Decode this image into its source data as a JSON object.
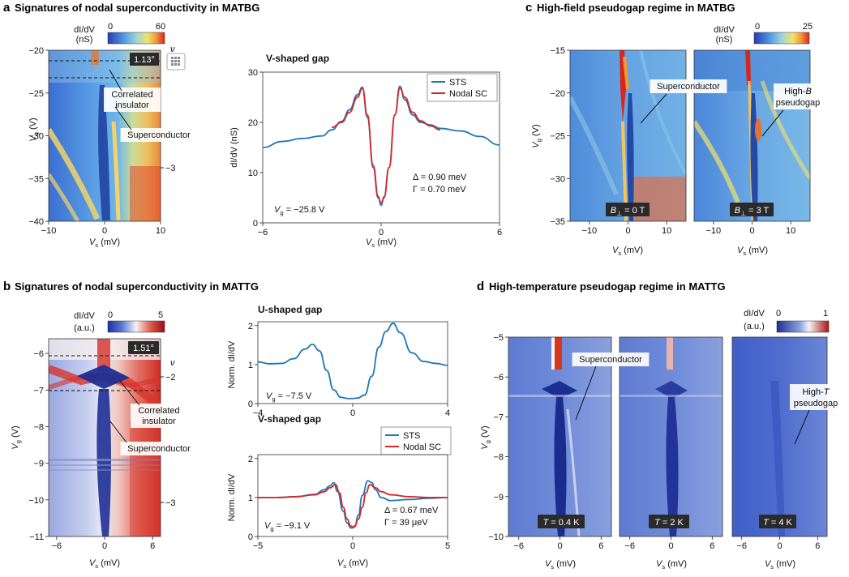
{
  "panels": {
    "a": {
      "letter": "a",
      "title": "Signatures of nodal superconductivity in MATBG"
    },
    "b": {
      "letter": "b",
      "title": "Signatures of nodal superconductivity in MATTG"
    },
    "c": {
      "letter": "c",
      "title": "High-field pseudogap regime in MATBG"
    },
    "d": {
      "letter": "d",
      "title": "High-temperature pseudogap regime in MATTG"
    }
  },
  "colors": {
    "cool": "#2b4fb5",
    "mid": "#f2f2f2",
    "warm": "#c4141b",
    "sts": "#1f77b4",
    "nodal": "#d62728",
    "parula_low": "#3a56c8",
    "parula_high": "#e03a2a"
  },
  "chart_data": [
    {
      "id": "a-map",
      "type": "heatmap",
      "colorbar": {
        "label1": "dI/dV",
        "label2": "(nS)",
        "min": 0,
        "max": 60,
        "ticks": [
          "0",
          "60"
        ]
      },
      "xlabel": "V",
      "xlabel_sub": "s",
      "xlabel_unit": " (mV)",
      "ylabel": "V",
      "ylabel_sub": "g",
      "ylabel_unit": " (V)",
      "xlim": [
        -10,
        10
      ],
      "ylim": [
        -40,
        -20
      ],
      "xticks": [
        "-10",
        "0",
        "10"
      ],
      "yticks": [
        "-20",
        "-25",
        "-30",
        "-35",
        "-40"
      ],
      "right_axis": {
        "label": "ν",
        "ticks": [
          "-3"
        ]
      },
      "twist_badge": "1.13°",
      "annotations": [
        "Correlated insulator",
        "Superconductor"
      ],
      "dashed_lines_vg": [
        -21.3,
        -23.1
      ]
    },
    {
      "id": "a-line",
      "type": "line",
      "title": "V-shaped gap",
      "xlabel": "V",
      "xlabel_sub": "s",
      "xlabel_unit": " (mV)",
      "ylabel": "dI/dV (nS)",
      "xlim": [
        -6,
        6
      ],
      "ylim": [
        0,
        30
      ],
      "xticks": [
        "-6",
        "0",
        "6"
      ],
      "yticks": [
        "0",
        "10",
        "20",
        "30"
      ],
      "legend": [
        "STS",
        "Nodal SC"
      ],
      "gate_label": "V",
      "gate_sub": "g",
      "gate_value": " = −25.8 V",
      "params": [
        "Δ = 0.90 meV",
        "Γ = 0.70 meV"
      ],
      "series": [
        {
          "name": "STS",
          "x": [
            -6,
            -5,
            -4,
            -3,
            -2.5,
            -2,
            -1.6,
            -1.2,
            -0.95,
            -0.7,
            -0.4,
            -0.15,
            0,
            0.15,
            0.4,
            0.7,
            0.95,
            1.2,
            1.6,
            2,
            2.5,
            3,
            4,
            5,
            6
          ],
          "y": [
            15,
            16.2,
            16.8,
            17.3,
            18.5,
            20.2,
            22.5,
            25.5,
            27,
            21,
            11.5,
            5.3,
            3.5,
            5.2,
            11,
            21.5,
            27.2,
            24.5,
            21.5,
            20,
            19.5,
            18.8,
            18.3,
            17.2,
            15.5
          ]
        },
        {
          "name": "Nodal SC",
          "x": [
            -2.5,
            -2,
            -1.6,
            -1.2,
            -0.95,
            -0.7,
            -0.4,
            -0.15,
            0,
            0.15,
            0.4,
            0.7,
            0.95,
            1.2,
            1.6,
            2,
            2.5,
            3
          ],
          "y": [
            19,
            20,
            22,
            25,
            26.8,
            21.5,
            11,
            5,
            4,
            5,
            11,
            21.5,
            26.8,
            25,
            22,
            20.3,
            19.3,
            18.5
          ]
        }
      ]
    },
    {
      "id": "b-map",
      "type": "heatmap",
      "colorbar": {
        "label1": "dI/dV",
        "label2": "(a.u.)",
        "min": 0,
        "max": 5,
        "ticks": [
          "0",
          "5"
        ]
      },
      "xlabel": "V",
      "xlabel_sub": "s",
      "xlabel_unit": " (mV)",
      "ylabel": "V",
      "ylabel_sub": "g",
      "ylabel_unit": " (V)",
      "xlim": [
        -7,
        7
      ],
      "ylim": [
        -11,
        -5.6
      ],
      "xticks": [
        "-6",
        "0",
        "6"
      ],
      "yticks": [
        "-6",
        "-7",
        "-8",
        "-9",
        "-10",
        "-11"
      ],
      "right_axis": {
        "label": "ν",
        "ticks": [
          "-2",
          "-3"
        ]
      },
      "twist_badge": "1.51°",
      "annotations": [
        "Correlated insulator",
        "Superconductor"
      ],
      "dashed_lines_vg": [
        -5.95,
        -6.9
      ]
    },
    {
      "id": "b-line-u",
      "type": "line",
      "title": "U-shaped gap",
      "xlabel": "",
      "ylabel": "Norm. dI/dV",
      "xlim": [
        -4,
        4
      ],
      "ylim": [
        0,
        2.1
      ],
      "xticks": [
        "-4",
        "0",
        "4"
      ],
      "yticks": [
        "0",
        "1",
        "2"
      ],
      "gate_label": "V",
      "gate_sub": "g",
      "gate_value": " = −7.5 V",
      "series": [
        {
          "name": "STS",
          "x": [
            -4,
            -3.5,
            -3,
            -2.5,
            -2,
            -1.7,
            -1.4,
            -1.1,
            -0.8,
            -0.5,
            -0.2,
            0,
            0.2,
            0.5,
            0.8,
            1.1,
            1.4,
            1.7,
            2,
            2.5,
            3,
            3.5,
            4
          ],
          "y": [
            1.07,
            1.02,
            1.03,
            1.15,
            1.4,
            1.52,
            1.35,
            0.85,
            0.35,
            0.16,
            0.13,
            0.13,
            0.14,
            0.22,
            0.7,
            1.45,
            1.85,
            2.06,
            1.82,
            1.3,
            1.08,
            1.03,
            0.98
          ]
        }
      ]
    },
    {
      "id": "b-line-v",
      "type": "line",
      "title": "V-shaped gap",
      "xlabel": "V",
      "xlabel_sub": "s",
      "xlabel_unit": " (mV)",
      "ylabel": "Norm. dI/dV",
      "xlim": [
        -5,
        5
      ],
      "ylim": [
        0,
        2.1
      ],
      "xticks": [
        "-5",
        "0",
        "5"
      ],
      "yticks": [
        "0",
        "1",
        "2"
      ],
      "legend": [
        "STS",
        "Nodal SC"
      ],
      "gate_label": "V",
      "gate_sub": "g",
      "gate_value": " = −9.1 V",
      "params": [
        "Δ = 0.67 meV",
        "Γ = 39 μeV"
      ],
      "series": [
        {
          "name": "STS",
          "x": [
            -5,
            -4,
            -3,
            -2,
            -1.5,
            -1.2,
            -1,
            -0.8,
            -0.5,
            -0.3,
            -0.1,
            0,
            0.1,
            0.3,
            0.5,
            0.8,
            1,
            1.2,
            1.5,
            2,
            3,
            4,
            5
          ],
          "y": [
            1.0,
            1.0,
            1.02,
            1.08,
            1.2,
            1.3,
            1.38,
            1.15,
            0.65,
            0.35,
            0.22,
            0.22,
            0.25,
            0.55,
            1.05,
            1.43,
            1.38,
            1.2,
            1.0,
            0.92,
            0.95,
            0.98,
            1.0
          ]
        },
        {
          "name": "Nodal SC",
          "x": [
            -5,
            -4,
            -3,
            -2,
            -1.5,
            -1.2,
            -0.9,
            -0.7,
            -0.5,
            -0.3,
            -0.1,
            0,
            0.1,
            0.3,
            0.5,
            0.7,
            0.9,
            1.2,
            1.5,
            2,
            3,
            4,
            5
          ],
          "y": [
            1.0,
            1.0,
            1.02,
            1.07,
            1.15,
            1.25,
            1.33,
            1.12,
            0.75,
            0.45,
            0.27,
            0.24,
            0.27,
            0.45,
            0.75,
            1.12,
            1.33,
            1.25,
            1.15,
            1.07,
            1.02,
            1.0,
            1.0
          ]
        }
      ]
    },
    {
      "id": "c-maps",
      "type": "heatmap",
      "colorbar": {
        "label1": "dI/dV",
        "label2": "(nS)",
        "min": 0,
        "max": 25,
        "ticks": [
          "0",
          "25"
        ]
      },
      "xlabel": "V",
      "xlabel_sub": "s",
      "xlabel_unit": " (mV)",
      "ylabel": "V",
      "ylabel_sub": "g",
      "ylabel_unit": " (V)",
      "xlim": [
        -15,
        15
      ],
      "ylim": [
        -35,
        -15
      ],
      "xticks": [
        "-10",
        "0",
        "10"
      ],
      "yticks": [
        "-15",
        "-20",
        "-25",
        "-30",
        "-35"
      ],
      "annotations": [
        "Superconductor",
        "High-",
        "B",
        "pseudogap"
      ],
      "subpanels": [
        {
          "label": "B",
          "sub": "⊥",
          "value": " = 0 T"
        },
        {
          "label": "B",
          "sub": "⊥",
          "value": " = 3 T"
        }
      ]
    },
    {
      "id": "d-maps",
      "type": "heatmap",
      "colorbar": {
        "label1": "dI/dV",
        "label2": "(a.u.)",
        "min": 0,
        "max": 1,
        "ticks": [
          "0",
          "1"
        ]
      },
      "xlabel": "V",
      "xlabel_sub": "s",
      "xlabel_unit": " (mV)",
      "ylabel": "V",
      "ylabel_sub": "g",
      "ylabel_unit": " (V)",
      "xlim": [
        -7.5,
        7.5
      ],
      "ylim": [
        -10,
        -5
      ],
      "xticks": [
        "-6",
        "0",
        "6"
      ],
      "yticks": [
        "-5",
        "-6",
        "-7",
        "-8",
        "-9",
        "-10"
      ],
      "annotations": [
        "Superconductor",
        "High-",
        "T",
        "pseudogap"
      ],
      "subpanels": [
        {
          "label": "T",
          "value": " = 0.4 K"
        },
        {
          "label": "T",
          "value": " = 2 K"
        },
        {
          "label": "T",
          "value": " = 4 K"
        }
      ]
    }
  ]
}
